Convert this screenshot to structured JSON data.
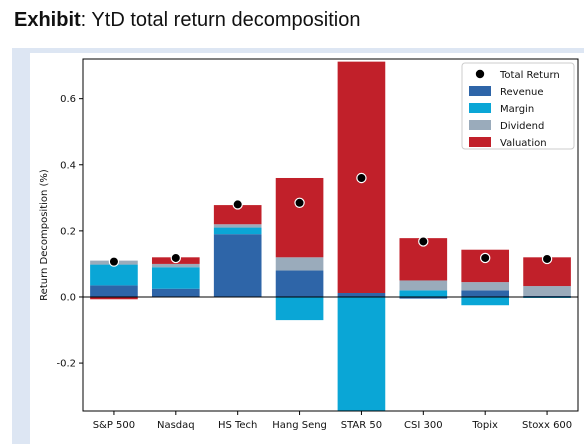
{
  "header": {
    "title_bold": "Exhibit",
    "title_rest": ": YtD total return decomposition"
  },
  "colors": {
    "revenue": "#2e65a8",
    "margin": "#0aa6d6",
    "dividend": "#9aabbb",
    "valuation": "#c1202a",
    "total_marker": "#000000",
    "panel_bg": "#dde6f3"
  },
  "chart_data": {
    "type": "bar",
    "stacked": true,
    "title": "",
    "xlabel": "",
    "ylabel": "Return Decomposition (%)",
    "ylim": [
      -0.345,
      0.72
    ],
    "yticks": [
      -0.2,
      0.0,
      0.2,
      0.4,
      0.6
    ],
    "ytick_labels": [
      "-0.2",
      "0.0",
      "0.2",
      "0.4",
      "0.6"
    ],
    "grid": false,
    "legend_position": "top-right",
    "categories": [
      "S&P 500",
      "Nasdaq",
      "HS Tech",
      "Hang Seng",
      "STAR 50",
      "CSI 300",
      "Topix",
      "Stoxx 600"
    ],
    "series": [
      {
        "name": "Revenue",
        "color_key": "revenue",
        "values": [
          0.035,
          0.025,
          0.19,
          0.08,
          0.012,
          -0.005,
          0.02,
          0.003
        ]
      },
      {
        "name": "Margin",
        "color_key": "margin",
        "values": [
          0.063,
          0.065,
          0.02,
          -0.07,
          -0.345,
          0.02,
          -0.025,
          -0.003
        ]
      },
      {
        "name": "Dividend",
        "color_key": "dividend",
        "values": [
          0.012,
          0.01,
          0.01,
          0.04,
          0.0,
          0.03,
          0.025,
          0.03
        ]
      },
      {
        "name": "Valuation",
        "color_key": "valuation",
        "values": [
          -0.007,
          0.02,
          0.058,
          0.24,
          0.7,
          0.128,
          0.098,
          0.087
        ]
      }
    ],
    "total_return": {
      "name": "Total Return",
      "values": [
        0.107,
        0.118,
        0.28,
        0.285,
        0.36,
        0.168,
        0.118,
        0.115
      ]
    }
  }
}
